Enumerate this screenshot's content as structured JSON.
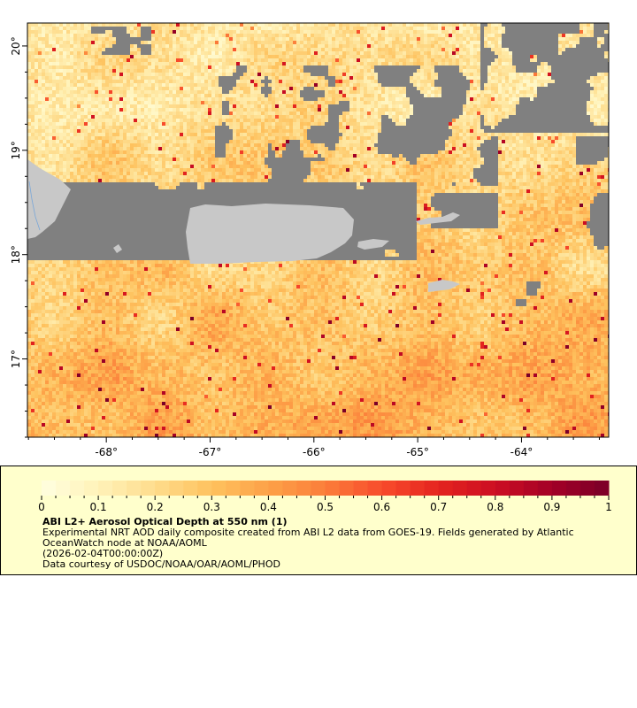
{
  "map": {
    "variable": "Aerosol Optical Depth at 550 nm",
    "lon_range": [
      -68.76,
      -63.16
    ],
    "lat_range": [
      16.25,
      20.22
    ],
    "lon_ticks": [
      "-68°",
      "-67°",
      "-66°",
      "-65°",
      "-64°"
    ],
    "lat_ticks": [
      "20°",
      "19°",
      "18°",
      "17°"
    ],
    "colors": {
      "land": "#c8c8c8",
      "no_data": "#808080",
      "frame": "#000000"
    }
  },
  "legend": {
    "range": [
      0,
      1
    ],
    "tick_labels": [
      "0",
      "0.1",
      "0.2",
      "0.3",
      "0.4",
      "0.5",
      "0.6",
      "0.7",
      "0.8",
      "0.9",
      "1"
    ],
    "colormap": [
      "#ffffe0",
      "#fff2b8",
      "#fedc8c",
      "#fec25e",
      "#fda148",
      "#fb7d3a",
      "#f84c2c",
      "#e4241f",
      "#cc0e22",
      "#a30026",
      "#7a0028"
    ],
    "title": "ABI L2+ Aerosol Optical Depth at 550 nm (1)",
    "line1": "Experimental NRT AOD daily composite created from ABI L2 data from GOES-19. Fields generated by Atlantic",
    "line2": "OceanWatch node at NOAA/AOML",
    "line3": "(2026-02-04T00:00:00Z)",
    "line4": "Data courtesy of USDOC/NOAA/OAR/AOML/PHOD"
  }
}
